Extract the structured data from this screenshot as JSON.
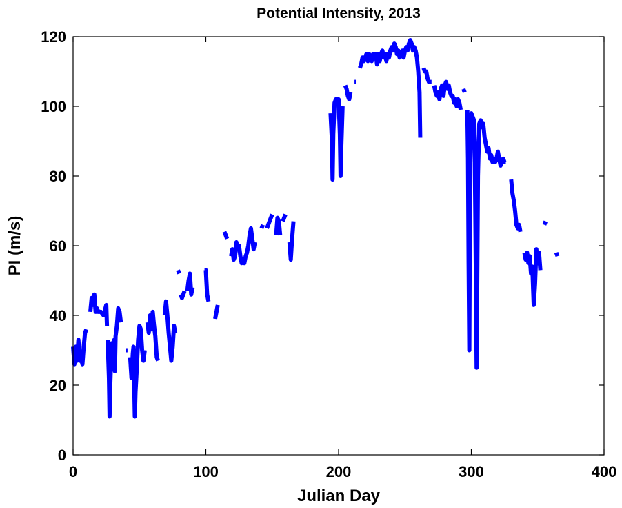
{
  "chart_data": {
    "type": "line",
    "title": "Potential Intensity, 2013",
    "xlabel": "Julian Day",
    "ylabel": "PI (m/s)",
    "xlim": [
      0,
      400
    ],
    "ylim": [
      0,
      120
    ],
    "xticks": [
      0,
      100,
      200,
      300,
      400
    ],
    "yticks": [
      0,
      20,
      40,
      60,
      80,
      100,
      120
    ],
    "grid": false,
    "line_color": "#0000ff",
    "segments": [
      [
        [
          0,
          31
        ],
        [
          1,
          26
        ],
        [
          2,
          31
        ],
        [
          3,
          27
        ],
        [
          4,
          33
        ],
        [
          5,
          27
        ],
        [
          6,
          28
        ],
        [
          7,
          26
        ],
        [
          8,
          31
        ],
        [
          9,
          35
        ],
        [
          10,
          36
        ]
      ],
      [
        [
          13,
          41
        ],
        [
          14,
          45
        ],
        [
          15,
          43
        ],
        [
          16,
          46
        ],
        [
          17,
          41
        ],
        [
          18,
          42
        ],
        [
          19,
          41
        ],
        [
          21,
          41
        ],
        [
          23,
          40
        ],
        [
          25,
          43
        ],
        [
          25.5,
          37
        ]
      ],
      [
        [
          26,
          33
        ],
        [
          27,
          22
        ],
        [
          27.5,
          11
        ],
        [
          28,
          20
        ],
        [
          29,
          32
        ],
        [
          30,
          28
        ],
        [
          31,
          33
        ],
        [
          31.5,
          24
        ],
        [
          32,
          34
        ],
        [
          33,
          37
        ],
        [
          34,
          42
        ],
        [
          35,
          41
        ],
        [
          36,
          38
        ]
      ],
      [
        [
          40,
          30
        ],
        [
          41,
          30
        ]
      ],
      [
        [
          43,
          28
        ],
        [
          44,
          22
        ],
        [
          45,
          29
        ],
        [
          45.5,
          31
        ],
        [
          46,
          21
        ],
        [
          46.5,
          11
        ],
        [
          47,
          18
        ],
        [
          48,
          25
        ],
        [
          49,
          33
        ],
        [
          50,
          37
        ],
        [
          51,
          36
        ],
        [
          52,
          30
        ],
        [
          53,
          27
        ],
        [
          54,
          30
        ]
      ],
      [
        [
          56,
          38
        ],
        [
          57,
          35
        ],
        [
          58,
          40
        ],
        [
          59,
          36
        ],
        [
          60,
          41
        ],
        [
          61,
          37
        ],
        [
          62,
          34
        ],
        [
          63,
          28
        ],
        [
          64,
          27
        ]
      ],
      [
        [
          69,
          40
        ],
        [
          70,
          44
        ],
        [
          71,
          40
        ],
        [
          72,
          35
        ],
        [
          73,
          31
        ],
        [
          74,
          27
        ],
        [
          75,
          31
        ],
        [
          76,
          37
        ],
        [
          77,
          35
        ]
      ],
      [
        [
          79,
          53
        ],
        [
          80,
          52
        ]
      ],
      [
        [
          81,
          46
        ],
        [
          82,
          45
        ],
        [
          84,
          47
        ]
      ],
      [
        [
          86,
          47
        ],
        [
          87,
          50
        ],
        [
          88,
          52
        ],
        [
          89,
          46
        ],
        [
          90,
          48
        ]
      ],
      [
        [
          99,
          53
        ],
        [
          100,
          53
        ],
        [
          101,
          46
        ],
        [
          102,
          44
        ]
      ],
      [
        [
          107,
          39
        ],
        [
          108,
          41
        ],
        [
          109,
          43
        ]
      ],
      [
        [
          114,
          64
        ],
        [
          115,
          63
        ],
        [
          116,
          62
        ]
      ],
      [
        [
          119,
          57
        ],
        [
          120,
          59
        ],
        [
          121,
          56
        ],
        [
          122,
          57
        ],
        [
          123,
          61
        ],
        [
          124,
          59
        ],
        [
          125,
          60
        ],
        [
          126,
          57
        ],
        [
          127,
          55
        ],
        [
          128,
          56
        ],
        [
          129,
          55
        ],
        [
          130,
          57
        ],
        [
          131,
          58
        ],
        [
          132,
          60
        ],
        [
          133,
          63
        ],
        [
          134,
          65
        ],
        [
          135,
          62
        ],
        [
          136,
          59
        ],
        [
          137,
          61
        ]
      ],
      [
        [
          142,
          65
        ],
        [
          143,
          66
        ]
      ],
      [
        [
          146,
          65
        ],
        [
          148,
          67
        ],
        [
          150,
          69
        ]
      ],
      [
        [
          153,
          63
        ],
        [
          154,
          68
        ],
        [
          155,
          67
        ],
        [
          156,
          63
        ]
      ],
      [
        [
          158,
          67
        ],
        [
          160,
          69
        ]
      ],
      [
        [
          163,
          61
        ],
        [
          164,
          56
        ],
        [
          165,
          62
        ],
        [
          166,
          67
        ]
      ],
      [
        [
          194,
          98
        ],
        [
          195,
          90
        ],
        [
          195.5,
          79
        ],
        [
          196,
          92
        ],
        [
          197,
          101
        ],
        [
          198,
          102
        ],
        [
          199,
          102
        ],
        [
          200,
          102
        ],
        [
          201,
          92
        ],
        [
          201.5,
          80
        ],
        [
          202,
          88
        ],
        [
          203,
          100
        ]
      ],
      [
        [
          205,
          106
        ],
        [
          206,
          105
        ],
        [
          207,
          103
        ],
        [
          208,
          102
        ],
        [
          209,
          104
        ]
      ],
      [
        [
          212,
          107
        ],
        [
          213,
          107
        ]
      ],
      [
        [
          216,
          111
        ],
        [
          217,
          112
        ],
        [
          218,
          114
        ],
        [
          219,
          113
        ],
        [
          220,
          114
        ],
        [
          221,
          115
        ],
        [
          222,
          113
        ],
        [
          223,
          115
        ],
        [
          224,
          114
        ],
        [
          225,
          113
        ],
        [
          226,
          115
        ],
        [
          227,
          114
        ],
        [
          228,
          115
        ],
        [
          229,
          112
        ],
        [
          230,
          115
        ],
        [
          231,
          113
        ],
        [
          232,
          115
        ],
        [
          233,
          116
        ],
        [
          234,
          114
        ],
        [
          235,
          115
        ],
        [
          236,
          113
        ],
        [
          237,
          115
        ],
        [
          238,
          114
        ],
        [
          239,
          116
        ],
        [
          240,
          117
        ],
        [
          241,
          116
        ],
        [
          242,
          118
        ],
        [
          243,
          117
        ],
        [
          244,
          115
        ],
        [
          245,
          116
        ],
        [
          246,
          114
        ],
        [
          247,
          115
        ],
        [
          248,
          116
        ],
        [
          249,
          114
        ],
        [
          250,
          116
        ],
        [
          251,
          117
        ],
        [
          252,
          116
        ],
        [
          253,
          118
        ],
        [
          254,
          119
        ],
        [
          255,
          118
        ],
        [
          256,
          116
        ],
        [
          257,
          117
        ],
        [
          258,
          116
        ],
        [
          259,
          114
        ],
        [
          260,
          110
        ],
        [
          261,
          104
        ],
        [
          261.5,
          91
        ]
      ],
      [
        [
          264,
          111
        ],
        [
          265,
          110
        ],
        [
          266,
          110
        ],
        [
          267,
          108
        ],
        [
          268,
          107
        ],
        [
          269,
          107
        ],
        [
          270,
          107
        ]
      ],
      [
        [
          272,
          106
        ],
        [
          273,
          104
        ],
        [
          274,
          103
        ],
        [
          275,
          104
        ],
        [
          276,
          102
        ],
        [
          277,
          105
        ],
        [
          278,
          106
        ],
        [
          279,
          103
        ],
        [
          280,
          106
        ],
        [
          281,
          107
        ],
        [
          282,
          105
        ],
        [
          283,
          106
        ],
        [
          284,
          104
        ],
        [
          285,
          103
        ],
        [
          286,
          103
        ],
        [
          287,
          101
        ],
        [
          288,
          102
        ],
        [
          289,
          100
        ],
        [
          290,
          102
        ],
        [
          291,
          101
        ],
        [
          292,
          99
        ]
      ],
      [
        [
          294,
          105
        ],
        [
          295,
          104
        ]
      ],
      [
        [
          297,
          99
        ],
        [
          297.5,
          85
        ],
        [
          298,
          55
        ],
        [
          298.5,
          30
        ],
        [
          299,
          80
        ],
        [
          300,
          98
        ],
        [
          301,
          97
        ],
        [
          302,
          96
        ],
        [
          302.5,
          90
        ],
        [
          303,
          70
        ],
        [
          303.5,
          50
        ],
        [
          304,
          25
        ],
        [
          305,
          80
        ],
        [
          306,
          95
        ],
        [
          307,
          96
        ],
        [
          308,
          94
        ],
        [
          309,
          95
        ],
        [
          310,
          91
        ],
        [
          311,
          89
        ],
        [
          312,
          87
        ],
        [
          313,
          88
        ],
        [
          314,
          85
        ],
        [
          315,
          86
        ],
        [
          316,
          84
        ],
        [
          317,
          85
        ],
        [
          318,
          84
        ],
        [
          319,
          85
        ],
        [
          320,
          87
        ],
        [
          321,
          85
        ],
        [
          322,
          83
        ],
        [
          323,
          84
        ],
        [
          324,
          85
        ],
        [
          325,
          84
        ],
        [
          326,
          84
        ]
      ],
      [
        [
          330,
          79
        ],
        [
          331,
          75
        ],
        [
          332,
          73
        ],
        [
          333,
          70
        ],
        [
          334,
          66
        ],
        [
          335,
          65
        ],
        [
          336,
          66
        ],
        [
          337,
          64
        ]
      ],
      [
        [
          340,
          58
        ],
        [
          341,
          56
        ],
        [
          342,
          58
        ],
        [
          343,
          55
        ],
        [
          344,
          57
        ],
        [
          345,
          52
        ],
        [
          346,
          54
        ],
        [
          347,
          43
        ],
        [
          348,
          49
        ],
        [
          349,
          59
        ],
        [
          350,
          55
        ],
        [
          351,
          58
        ],
        [
          352,
          53
        ]
      ],
      [
        [
          355,
          66
        ],
        [
          356,
          67
        ]
      ],
      [
        [
          364,
          58
        ],
        [
          365,
          57
        ]
      ]
    ]
  }
}
